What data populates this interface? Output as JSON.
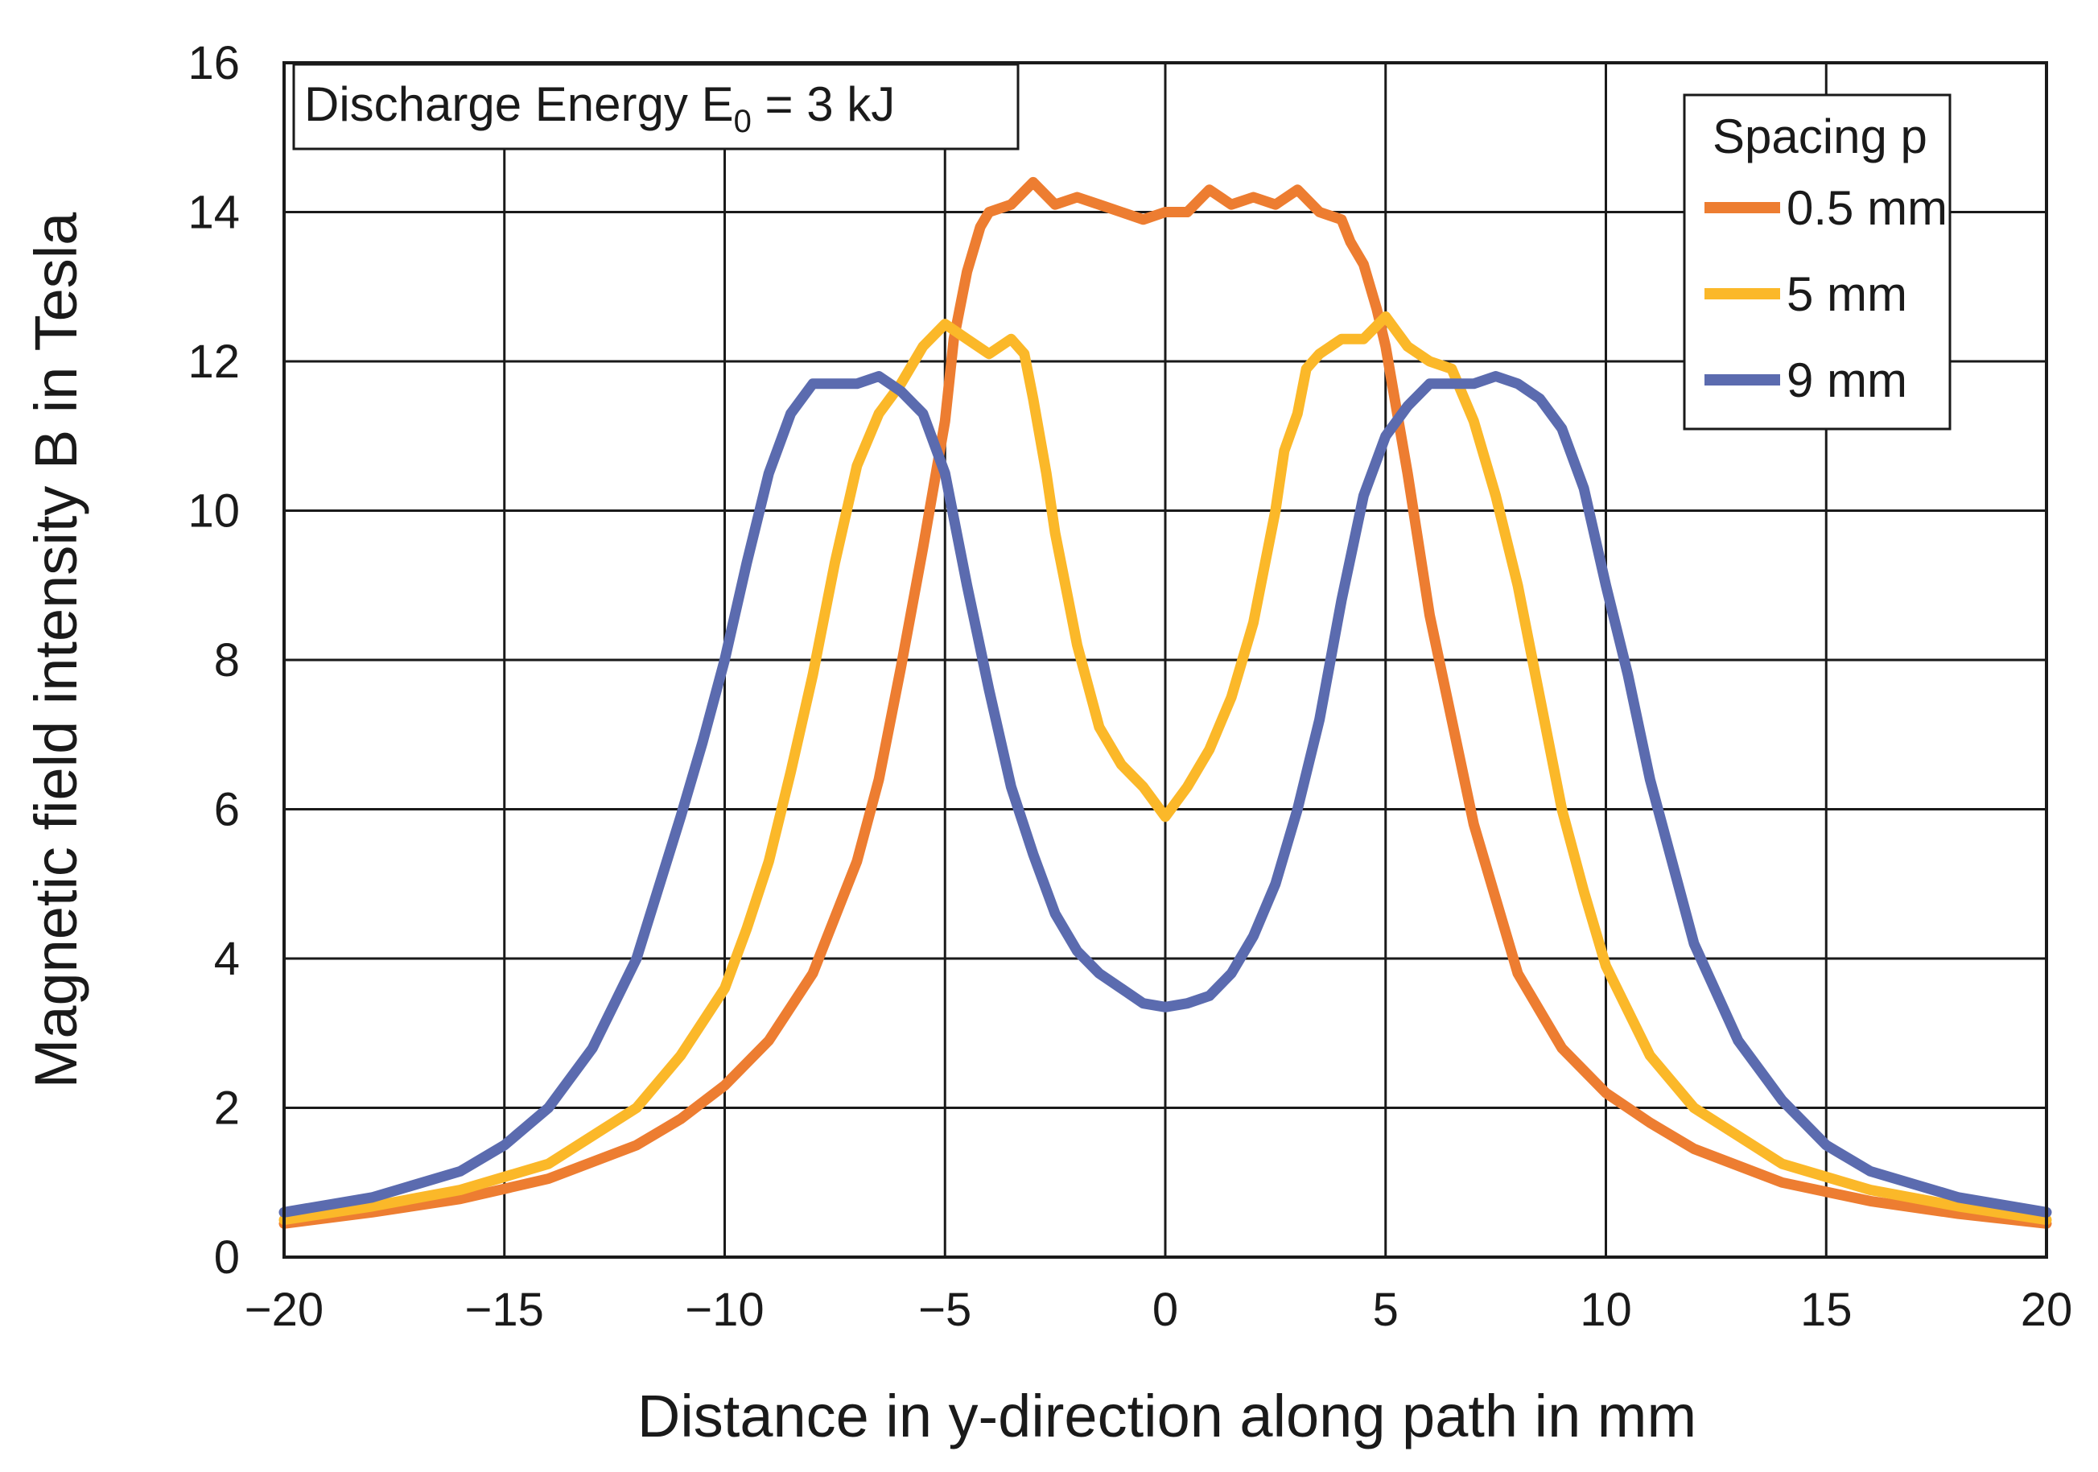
{
  "chart_data": {
    "type": "line",
    "title": "",
    "annotation": {
      "prefix": "Discharge Energy E",
      "subscript": "0",
      "suffix": " = 3 kJ"
    },
    "xlabel": "Distance in y-direction along path in mm",
    "ylabel": "Magnetic field intensity B in Tesla",
    "xlim": [
      -20,
      20
    ],
    "ylim": [
      0,
      16
    ],
    "xticks": [
      -20,
      -15,
      -10,
      -5,
      0,
      5,
      10,
      15,
      20
    ],
    "xtick_labels": [
      "−20",
      "−15",
      "−10",
      "−5",
      "0",
      "5",
      "10",
      "15",
      "20"
    ],
    "yticks": [
      0,
      2,
      4,
      6,
      8,
      10,
      12,
      14,
      16
    ],
    "ytick_labels": [
      "0",
      "2",
      "4",
      "6",
      "8",
      "10",
      "12",
      "14",
      "16"
    ],
    "grid": true,
    "legend": {
      "title": "Spacing p",
      "position": "top-right"
    },
    "series": [
      {
        "name": "0.5 mm",
        "color": "#ED7D31",
        "x": [
          -20,
          -18,
          -16,
          -14,
          -12,
          -11,
          -10,
          -9,
          -8,
          -7,
          -6.5,
          -6,
          -5.5,
          -5,
          -4.8,
          -4.5,
          -4.2,
          -4,
          -3.5,
          -3,
          -2.5,
          -2,
          -1.5,
          -1,
          -0.5,
          0,
          0.5,
          1,
          1.5,
          2,
          2.5,
          3,
          3.5,
          4,
          4.2,
          4.5,
          4.8,
          5,
          5.5,
          6,
          6.5,
          7,
          8,
          9,
          10,
          11,
          12,
          14,
          16,
          18,
          20
        ],
        "y": [
          0.45,
          0.6,
          0.78,
          1.05,
          1.5,
          1.85,
          2.3,
          2.9,
          3.8,
          5.3,
          6.4,
          7.9,
          9.5,
          11.2,
          12.3,
          13.2,
          13.8,
          14.0,
          14.1,
          14.4,
          14.1,
          14.2,
          14.1,
          14.0,
          13.9,
          14.0,
          14.0,
          14.3,
          14.1,
          14.2,
          14.1,
          14.3,
          14.0,
          13.9,
          13.6,
          13.3,
          12.7,
          12.2,
          10.5,
          8.6,
          7.2,
          5.8,
          3.8,
          2.8,
          2.2,
          1.8,
          1.45,
          1.0,
          0.75,
          0.58,
          0.45
        ]
      },
      {
        "name": "5 mm",
        "color": "#FBB829",
        "x": [
          -20,
          -18,
          -16,
          -14,
          -12,
          -11,
          -10,
          -9.5,
          -9,
          -8.5,
          -8,
          -7.5,
          -7,
          -6.5,
          -6,
          -5.5,
          -5,
          -4.5,
          -4,
          -3.5,
          -3.2,
          -3,
          -2.7,
          -2.5,
          -2.2,
          -2,
          -1.5,
          -1,
          -0.5,
          0,
          0.5,
          1,
          1.5,
          2,
          2.2,
          2.5,
          2.7,
          3,
          3.2,
          3.5,
          4,
          4.5,
          5,
          5.5,
          6,
          6.5,
          7,
          7.5,
          8,
          8.5,
          9,
          9.5,
          10,
          11,
          12,
          14,
          16,
          18,
          20
        ],
        "y": [
          0.5,
          0.68,
          0.9,
          1.25,
          2.0,
          2.7,
          3.6,
          4.4,
          5.3,
          6.5,
          7.8,
          9.3,
          10.6,
          11.3,
          11.7,
          12.2,
          12.5,
          12.3,
          12.1,
          12.3,
          12.1,
          11.5,
          10.5,
          9.7,
          8.8,
          8.2,
          7.1,
          6.6,
          6.3,
          5.9,
          6.3,
          6.8,
          7.5,
          8.5,
          9.1,
          10.0,
          10.8,
          11.3,
          11.9,
          12.1,
          12.3,
          12.3,
          12.6,
          12.2,
          12.0,
          11.9,
          11.2,
          10.2,
          9.0,
          7.5,
          6.0,
          4.9,
          3.9,
          2.7,
          2.0,
          1.25,
          0.9,
          0.68,
          0.5
        ]
      },
      {
        "name": "9 mm",
        "color": "#5B6BAF",
        "x": [
          -20,
          -18,
          -16,
          -15,
          -14,
          -13,
          -12,
          -11,
          -10.5,
          -10,
          -9.5,
          -9,
          -8.5,
          -8,
          -7.5,
          -7,
          -6.5,
          -6,
          -5.5,
          -5,
          -4.5,
          -4,
          -3.5,
          -3,
          -2.5,
          -2,
          -1.5,
          -1,
          -0.5,
          0,
          0.5,
          1,
          1.5,
          2,
          2.5,
          3,
          3.5,
          4,
          4.5,
          5,
          5.5,
          6,
          6.5,
          7,
          7.5,
          8,
          8.5,
          9,
          9.5,
          10,
          10.5,
          11,
          12,
          13,
          14,
          15,
          16,
          18,
          20
        ],
        "y": [
          0.6,
          0.8,
          1.15,
          1.5,
          2.0,
          2.8,
          4.0,
          5.9,
          6.9,
          8.0,
          9.3,
          10.5,
          11.3,
          11.7,
          11.7,
          11.7,
          11.8,
          11.6,
          11.3,
          10.5,
          9.0,
          7.6,
          6.3,
          5.4,
          4.6,
          4.1,
          3.8,
          3.6,
          3.4,
          3.35,
          3.4,
          3.5,
          3.8,
          4.3,
          5.0,
          6.0,
          7.2,
          8.8,
          10.2,
          11.0,
          11.4,
          11.7,
          11.7,
          11.7,
          11.8,
          11.7,
          11.5,
          11.1,
          10.3,
          9.0,
          7.8,
          6.4,
          4.2,
          2.9,
          2.1,
          1.5,
          1.15,
          0.8,
          0.6
        ]
      }
    ]
  }
}
